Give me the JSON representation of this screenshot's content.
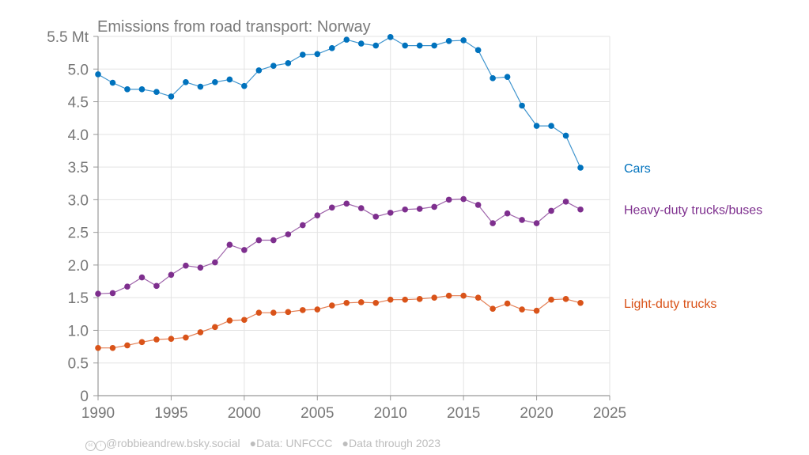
{
  "chart_data": {
    "type": "line",
    "title": "Emissions from road transport: Norway",
    "xlabel": "",
    "ylabel": "Mt",
    "xlim": [
      1990,
      2025
    ],
    "ylim": [
      0,
      5.5
    ],
    "x_ticks": [
      1990,
      1995,
      2000,
      2005,
      2010,
      2015,
      2020,
      2025
    ],
    "y_ticks": [
      {
        "value": 0,
        "label": "0"
      },
      {
        "value": 0.5,
        "label": "0.5"
      },
      {
        "value": 1.0,
        "label": "1.0"
      },
      {
        "value": 1.5,
        "label": "1.5"
      },
      {
        "value": 2.0,
        "label": "2.0"
      },
      {
        "value": 2.5,
        "label": "2.5"
      },
      {
        "value": 3.0,
        "label": "3.0"
      },
      {
        "value": 3.5,
        "label": "3.5"
      },
      {
        "value": 4.0,
        "label": "4.0"
      },
      {
        "value": 4.5,
        "label": "4.5"
      },
      {
        "value": 5.0,
        "label": "5.0"
      },
      {
        "value": 5.5,
        "label": "5.5 Mt"
      }
    ],
    "grid": true,
    "legend": "direct labels at right",
    "x": [
      1990,
      1991,
      1992,
      1993,
      1994,
      1995,
      1996,
      1997,
      1998,
      1999,
      2000,
      2001,
      2002,
      2003,
      2004,
      2005,
      2006,
      2007,
      2008,
      2009,
      2010,
      2011,
      2012,
      2013,
      2014,
      2015,
      2016,
      2017,
      2018,
      2019,
      2020,
      2021,
      2022,
      2023
    ],
    "series": [
      {
        "name": "Cars",
        "color": "#0072bd",
        "values": [
          4.92,
          4.79,
          4.69,
          4.69,
          4.65,
          4.58,
          4.8,
          4.73,
          4.8,
          4.84,
          4.74,
          4.98,
          5.05,
          5.09,
          5.22,
          5.23,
          5.32,
          5.45,
          5.39,
          5.36,
          5.49,
          5.36,
          5.36,
          5.36,
          5.43,
          5.44,
          5.29,
          4.86,
          4.88,
          4.44,
          4.13,
          4.13,
          3.98,
          3.49
        ]
      },
      {
        "name": "Heavy-duty trucks/buses",
        "color": "#7e2f8e",
        "values": [
          1.56,
          1.57,
          1.67,
          1.81,
          1.68,
          1.85,
          1.99,
          1.96,
          2.04,
          2.31,
          2.23,
          2.38,
          2.38,
          2.47,
          2.61,
          2.76,
          2.88,
          2.94,
          2.87,
          2.74,
          2.8,
          2.85,
          2.86,
          2.89,
          3.0,
          3.01,
          2.92,
          2.64,
          2.79,
          2.69,
          2.64,
          2.83,
          2.97,
          2.85
        ]
      },
      {
        "name": "Light-duty trucks",
        "color": "#d95319",
        "values": [
          0.73,
          0.73,
          0.77,
          0.82,
          0.86,
          0.87,
          0.89,
          0.97,
          1.05,
          1.15,
          1.16,
          1.27,
          1.27,
          1.28,
          1.31,
          1.32,
          1.38,
          1.42,
          1.43,
          1.42,
          1.47,
          1.47,
          1.48,
          1.5,
          1.53,
          1.53,
          1.5,
          1.33,
          1.41,
          1.32,
          1.3,
          1.47,
          1.48,
          1.42
        ]
      }
    ]
  },
  "footer": {
    "cc_icon": "creative-commons-icon",
    "by_icon": "attribution-icon",
    "author": "@robbieandrew.bsky.social",
    "separator": "●",
    "source": "Data: UNFCCC",
    "coverage": "Data through 2023"
  }
}
